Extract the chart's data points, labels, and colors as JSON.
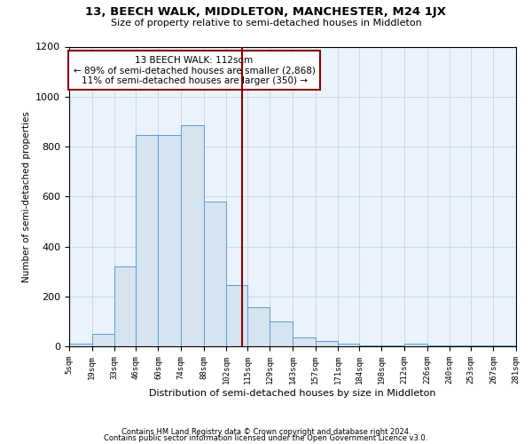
{
  "title": "13, BEECH WALK, MIDDLETON, MANCHESTER, M24 1JX",
  "subtitle": "Size of property relative to semi-detached houses in Middleton",
  "xlabel": "Distribution of semi-detached houses by size in Middleton",
  "ylabel": "Number of semi-detached properties",
  "footer_line1": "Contains HM Land Registry data © Crown copyright and database right 2024.",
  "footer_line2": "Contains public sector information licensed under the Open Government Licence v3.0.",
  "annotation_title": "13 BEECH WALK: 112sqm",
  "annotation_line1": "← 89% of semi-detached houses are smaller (2,868)",
  "annotation_line2": "11% of semi-detached houses are larger (350) →",
  "property_size": 112,
  "bin_edges": [
    5,
    19,
    33,
    46,
    60,
    74,
    88,
    102,
    115,
    129,
    143,
    157,
    171,
    184,
    198,
    212,
    226,
    240,
    253,
    267,
    281
  ],
  "bar_heights": [
    10,
    50,
    320,
    845,
    845,
    885,
    580,
    245,
    155,
    100,
    35,
    20,
    12,
    5,
    3,
    10,
    3,
    5,
    3,
    3
  ],
  "bar_color": "#d6e4f0",
  "bar_edge_color": "#5b9bd5",
  "vline_color": "#8b0000",
  "annotation_box_edge": "#8b0000",
  "grid_color": "#c8d8e8",
  "bg_color": "#eaf2fb",
  "ylim": [
    0,
    1200
  ],
  "yticks": [
    0,
    200,
    400,
    600,
    800,
    1000,
    1200
  ]
}
